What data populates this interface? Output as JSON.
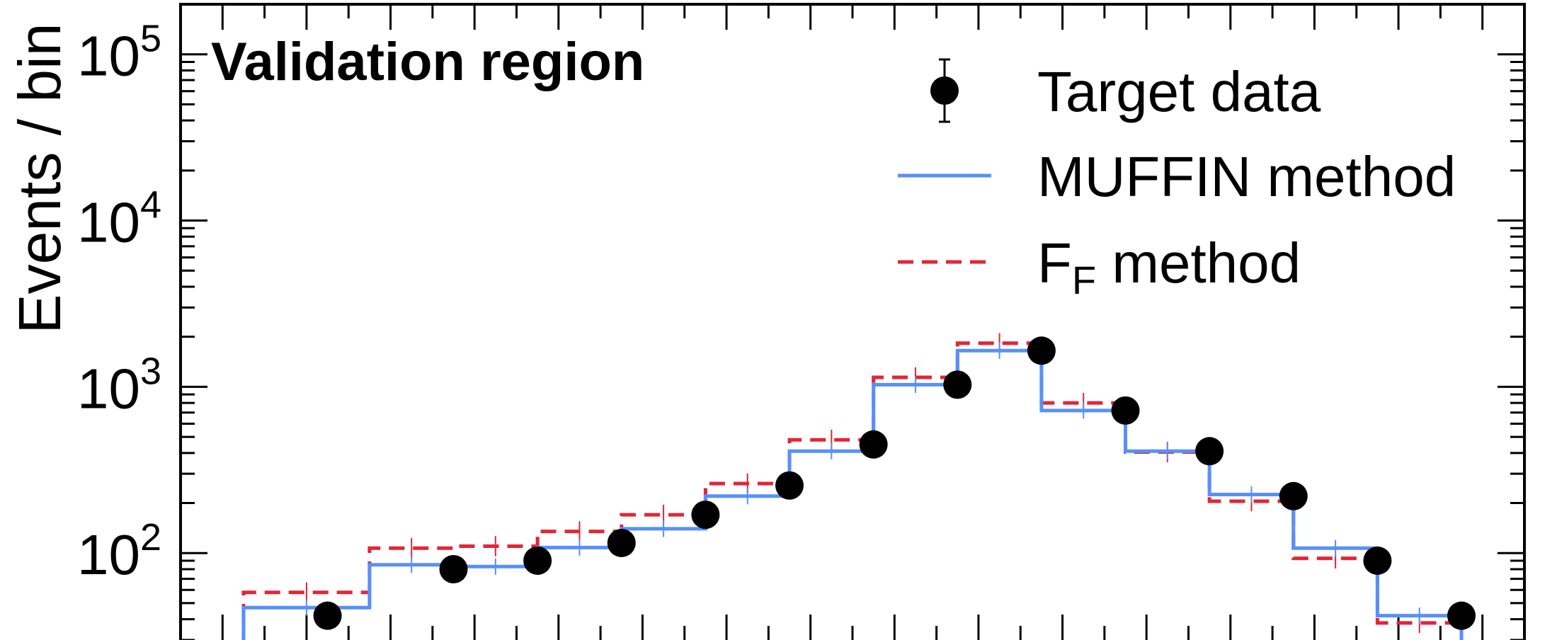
{
  "chart_data": {
    "type": "step-histogram",
    "annotation": "Validation region",
    "ylabel": "Events / bin",
    "yscale": "log",
    "ylim": [
      30,
      200000
    ],
    "xlim": [
      0,
      16
    ],
    "y_ticks": [
      {
        "value": 100,
        "base": "10",
        "exp": "2"
      },
      {
        "value": 1000,
        "base": "10",
        "exp": "3"
      },
      {
        "value": 10000,
        "base": "10",
        "exp": "4"
      },
      {
        "value": 100000,
        "base": "10",
        "exp": "5"
      }
    ],
    "bin_edges": [
      0.75,
      2.25,
      3.25,
      4.25,
      5.25,
      6.25,
      7.25,
      8.25,
      9.25,
      10.25,
      11.25,
      12.25,
      13.25,
      14.25,
      15.25
    ],
    "legend": {
      "placement": "top-right",
      "entries": [
        {
          "key": "data",
          "label": "Target data"
        },
        {
          "key": "muffin",
          "label": "MUFFIN method"
        },
        {
          "key": "ff",
          "label": "F",
          "sub": "F",
          "suffix": " method"
        }
      ]
    },
    "series": [
      {
        "name": "Target data",
        "style": "points",
        "color": "#000000",
        "x": [
          1.75,
          3.25,
          4.25,
          5.25,
          6.25,
          7.25,
          8.25,
          9.25,
          10.25,
          11.25,
          12.25,
          13.25,
          14.25,
          15.25
        ],
        "values": [
          42,
          80,
          90,
          115,
          170,
          255,
          450,
          1030,
          1650,
          720,
          410,
          220,
          90,
          42
        ]
      },
      {
        "name": "MUFFIN method",
        "style": "step",
        "color": "#5790fc",
        "values": [
          47,
          85,
          83,
          108,
          140,
          220,
          410,
          1030,
          1650,
          720,
          410,
          225,
          107,
          42
        ]
      },
      {
        "name": "F_F method",
        "style": "step-dashed",
        "color": "#e42536",
        "values": [
          58,
          107,
          110,
          135,
          170,
          262,
          480,
          1140,
          1830,
          800,
          405,
          205,
          93,
          38
        ]
      }
    ]
  }
}
